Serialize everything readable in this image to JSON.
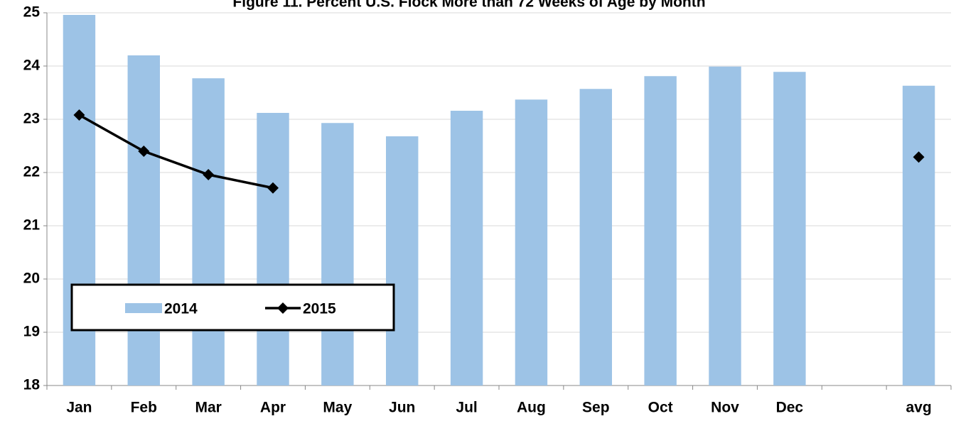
{
  "chart_data": {
    "type": "bar",
    "title": "Figure 11. Percent U.S. Flock More than 72 Weeks of Age by Month",
    "categories": [
      "Jan",
      "Feb",
      "Mar",
      "Apr",
      "May",
      "Jun",
      "Jul",
      "Aug",
      "Sep",
      "Oct",
      "Nov",
      "Dec",
      null,
      "avg"
    ],
    "series": [
      {
        "name": "2014",
        "type": "bar",
        "color": "#9dc3e6",
        "values": [
          24.96,
          24.2,
          23.77,
          23.12,
          22.93,
          22.68,
          23.16,
          23.37,
          23.57,
          23.81,
          23.99,
          23.89,
          null,
          23.63
        ]
      },
      {
        "name": "2015",
        "type": "line",
        "color": "#000000",
        "values": [
          23.08,
          22.4,
          21.96,
          21.71,
          null,
          null,
          null,
          null,
          null,
          null,
          null,
          null,
          null,
          22.29
        ]
      }
    ],
    "ylim": [
      18,
      25
    ],
    "yticks": [
      18,
      19,
      20,
      21,
      22,
      23,
      24,
      25
    ],
    "grid": true
  }
}
